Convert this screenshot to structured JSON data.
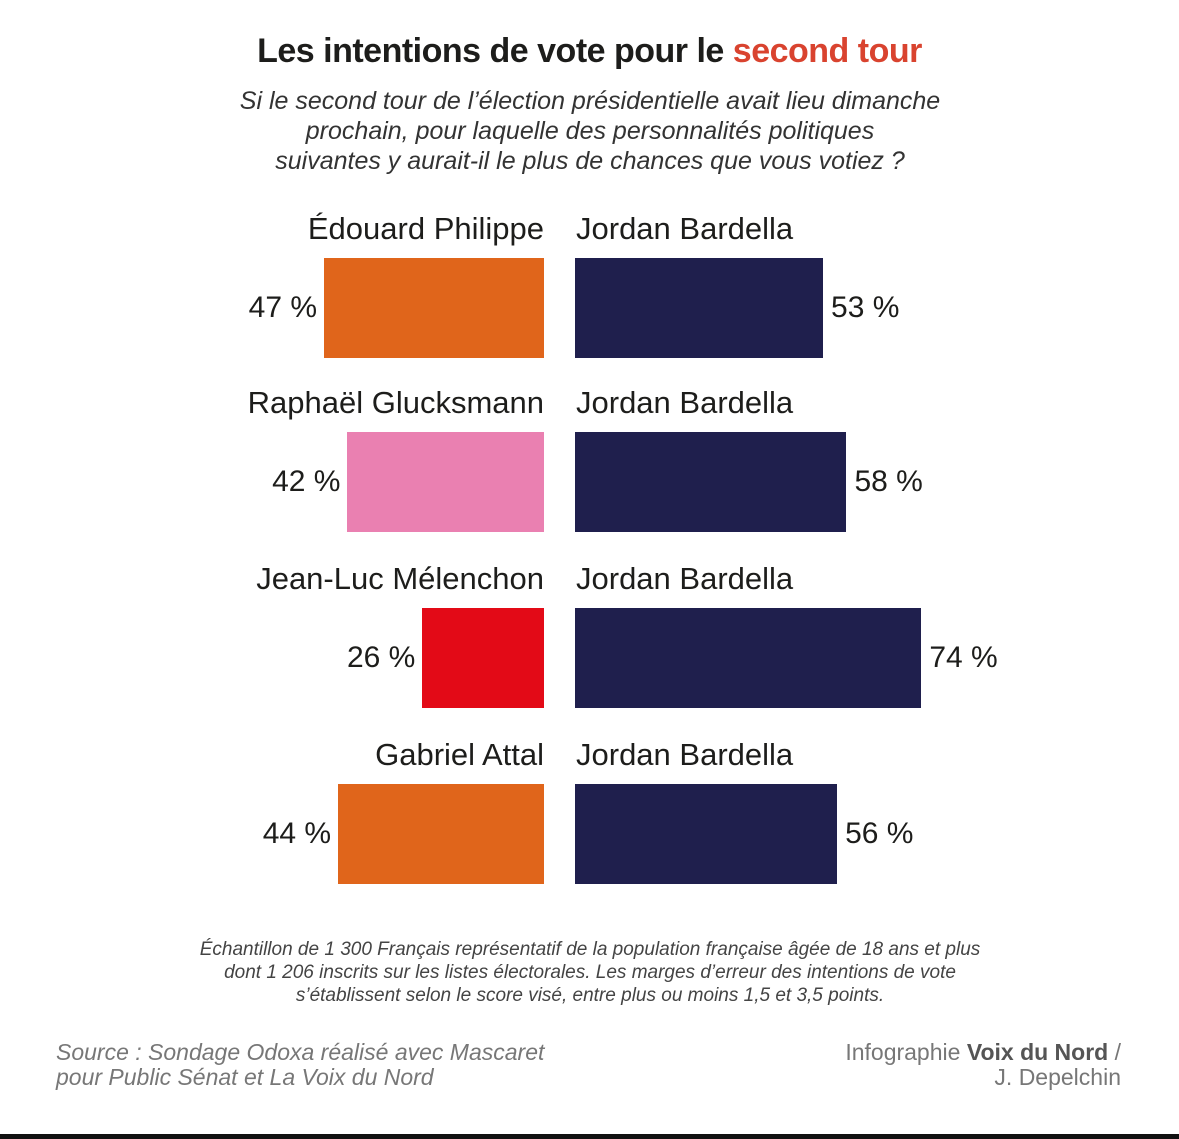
{
  "chart_data": {
    "type": "bar",
    "orientation": "horizontal-diverging",
    "title": "Les intentions de vote pour le",
    "title_highlight": "second tour",
    "subtitle": [
      "Si le second tour de l’élection présidentielle avait lieu dimanche",
      "prochain, pour laquelle des personnalités politiques",
      "suivantes y aurait-il le plus de chances que vous votiez ?"
    ],
    "unit_suffix": " %",
    "matchups": [
      {
        "left": {
          "name": "Édouard Philippe",
          "value": 47,
          "color": "#e0651b"
        },
        "right": {
          "name": "Jordan Bardella",
          "value": 53,
          "color": "#1f1f4d"
        }
      },
      {
        "left": {
          "name": "Raphaël Glucksmann",
          "value": 42,
          "color": "#ea80b1"
        },
        "right": {
          "name": "Jordan Bardella",
          "value": 58,
          "color": "#1f1f4d"
        }
      },
      {
        "left": {
          "name": "Jean-Luc Mélenchon",
          "value": 26,
          "color": "#e30a17"
        },
        "right": {
          "name": "Jordan Bardella",
          "value": 74,
          "color": "#1f1f4d"
        }
      },
      {
        "left": {
          "name": "Gabriel Attal",
          "value": 44,
          "color": "#e0651b"
        },
        "right": {
          "name": "Jordan Bardella",
          "value": 56,
          "color": "#1f1f4d"
        }
      }
    ],
    "title_highlight_color": "#d9432f"
  },
  "footer": {
    "note": [
      "Échantillon de 1 300 Français représentatif de la population française âgée de 18 ans et plus",
      "dont 1 206 inscrits sur les listes électorales. Les marges d’erreur des intentions de vote",
      "s’établissent selon le score visé, entre plus ou moins 1,5 et 3,5 points."
    ],
    "source": [
      "Source : Sondage Odoxa réalisé avec Mascaret",
      "pour Public Sénat et La Voix du Nord"
    ],
    "credit_prefix": "Infographie",
    "credit_brand": "Voix du Nord",
    "credit_suffix": " /",
    "credit_author": "J. Depelchin"
  }
}
